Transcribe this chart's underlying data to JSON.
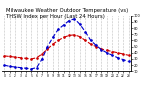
{
  "title": "Milwaukee Weather Outdoor Temperature (vs) THSW Index per Hour (Last 24 Hours)",
  "hours": [
    0,
    1,
    2,
    3,
    4,
    5,
    6,
    7,
    8,
    9,
    10,
    11,
    12,
    13,
    14,
    15,
    16,
    17,
    18,
    19,
    20,
    21,
    22,
    23
  ],
  "temp": [
    35,
    34,
    33,
    32,
    31,
    30,
    32,
    38,
    46,
    54,
    60,
    65,
    68,
    69,
    66,
    60,
    54,
    50,
    46,
    44,
    42,
    40,
    38,
    36
  ],
  "thsw": [
    20,
    18,
    17,
    16,
    15,
    14,
    16,
    30,
    50,
    65,
    78,
    85,
    92,
    95,
    86,
    74,
    60,
    52,
    45,
    40,
    36,
    32,
    29,
    26
  ],
  "temp_color": "#cc0000",
  "thsw_color": "#0000cc",
  "bg_color": "#ffffff",
  "grid_color": "#888888",
  "ylim_min": 10,
  "ylim_max": 100,
  "ytick_labels": [
    "10",
    "20",
    "30",
    "40",
    "50",
    "60",
    "70",
    "80",
    "90",
    "100"
  ],
  "ytick_vals": [
    10,
    20,
    30,
    40,
    50,
    60,
    70,
    80,
    90,
    100
  ],
  "title_fontsize": 3.8,
  "line_width": 0.8
}
